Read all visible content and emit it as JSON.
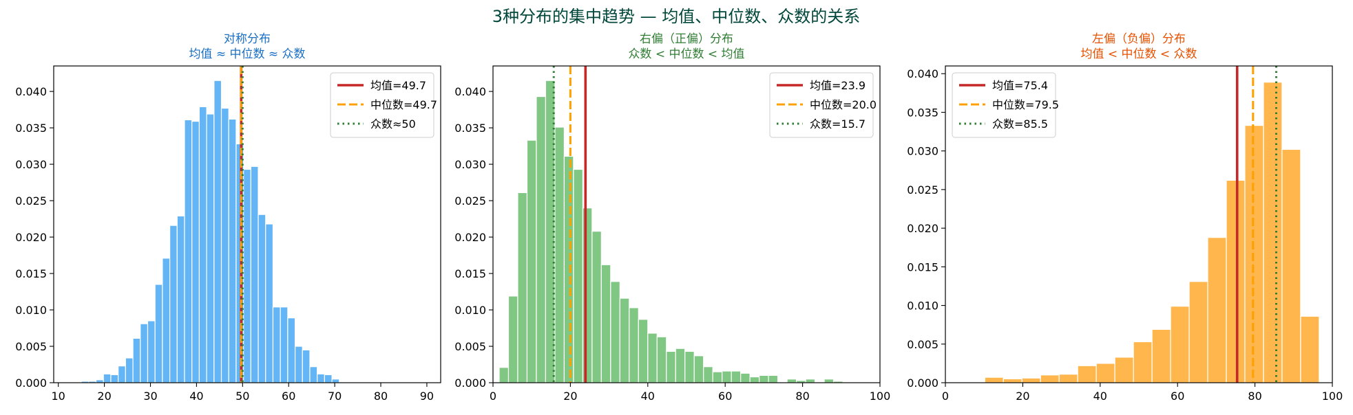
{
  "figure": {
    "suptitle": "3种分布的集中趋势 — 均值、中位数、众数的关系",
    "suptitle_color": "#00473a"
  },
  "chart_data": [
    {
      "type": "bar",
      "title_line1": "对称分布",
      "title_line2": "均值 ≈ 中位数 ≈ 众数",
      "title_color": "#1a6fc4",
      "bar_color": "#64b5f6",
      "xlim": [
        9,
        93
      ],
      "ylim": [
        0,
        0.0435
      ],
      "xticks": [
        10,
        20,
        30,
        40,
        50,
        60,
        70,
        80,
        90
      ],
      "yticks": [
        0,
        0.005,
        0.01,
        0.015,
        0.02,
        0.025,
        0.03,
        0.035,
        0.04
      ],
      "bin_start": 10.2,
      "bin_width": 1.6,
      "values": [
        0.0001,
        0.0001,
        0.0001,
        0.0002,
        0.0002,
        0.0004,
        0.0012,
        0.0011,
        0.0023,
        0.0034,
        0.0061,
        0.0081,
        0.0085,
        0.0135,
        0.0171,
        0.0216,
        0.0229,
        0.0361,
        0.0359,
        0.0379,
        0.0369,
        0.0415,
        0.0377,
        0.0362,
        0.0328,
        0.0293,
        0.0297,
        0.0231,
        0.0218,
        0.0104,
        0.0104,
        0.0089,
        0.005,
        0.0045,
        0.0022,
        0.0012,
        0.0011,
        0.0005,
        0.0001,
        0.0001,
        0.0001
      ],
      "lines": [
        {
          "label": "均值=49.7",
          "x": 49.7,
          "style": "solid",
          "color": "#c62828"
        },
        {
          "label": "中位数=49.7",
          "x": 49.7,
          "style": "dashed",
          "color": "#ffa000"
        },
        {
          "label": "众数≈50",
          "x": 50.0,
          "style": "dotted",
          "color": "#2e7d32"
        }
      ],
      "legend_loc": "upper right"
    },
    {
      "type": "bar",
      "title_line1": "右偏（正偏）分布",
      "title_line2": "众数 < 中位数 < 均值",
      "title_color": "#2e7d32",
      "bar_color": "#81c784",
      "xlim": [
        0,
        100
      ],
      "ylim": [
        0,
        0.0435
      ],
      "xticks": [
        0,
        20,
        40,
        60,
        80,
        100
      ],
      "yticks": [
        0,
        0.005,
        0.01,
        0.015,
        0.02,
        0.025,
        0.03,
        0.035,
        0.04
      ],
      "bin_start": 1.6,
      "bin_width": 2.4,
      "values": [
        0.0021,
        0.0119,
        0.0261,
        0.0333,
        0.0393,
        0.0415,
        0.0351,
        0.0311,
        0.0293,
        0.024,
        0.0208,
        0.0162,
        0.0139,
        0.0116,
        0.0103,
        0.0087,
        0.0068,
        0.0063,
        0.0043,
        0.0047,
        0.0043,
        0.0037,
        0.0022,
        0.0015,
        0.0016,
        0.0016,
        0.0013,
        0.0008,
        0.001,
        0.001,
        0.0001,
        0.0005,
        0.0003,
        0.0005,
        0.0001,
        0.0005,
        0.0002,
        0.0001
      ],
      "lines": [
        {
          "label": "均值=23.9",
          "x": 23.9,
          "style": "solid",
          "color": "#c62828"
        },
        {
          "label": "中位数=20.0",
          "x": 20.0,
          "style": "dashed",
          "color": "#ffa000"
        },
        {
          "label": "众数=15.7",
          "x": 15.7,
          "style": "dotted",
          "color": "#2e7d32"
        }
      ],
      "legend_loc": "upper right"
    },
    {
      "type": "bar",
      "title_line1": "左偏（负偏）分布",
      "title_line2": "均值 < 中位数 < 众数",
      "title_color": "#e65100",
      "bar_color": "#ffb74d",
      "xlim": [
        0,
        100
      ],
      "ylim": [
        0,
        0.041
      ],
      "xticks": [
        0,
        20,
        40,
        60,
        80,
        100
      ],
      "yticks": [
        0,
        0.005,
        0.01,
        0.015,
        0.02,
        0.025,
        0.03,
        0.035,
        0.04
      ],
      "bin_start": 0.6,
      "bin_width": 4.8,
      "values": [
        0.0001,
        0.0001,
        0.0007,
        0.0005,
        0.0006,
        0.001,
        0.0011,
        0.0022,
        0.0025,
        0.0033,
        0.0053,
        0.0069,
        0.0099,
        0.0131,
        0.0188,
        0.0262,
        0.0333,
        0.0389,
        0.0302,
        0.0086
      ],
      "lines": [
        {
          "label": "均值=75.4",
          "x": 75.4,
          "style": "solid",
          "color": "#c62828"
        },
        {
          "label": "中位数=79.5",
          "x": 79.5,
          "style": "dashed",
          "color": "#ffa000"
        },
        {
          "label": "众数=85.5",
          "x": 85.5,
          "style": "dotted",
          "color": "#2e7d32"
        }
      ],
      "legend_loc": "upper left"
    }
  ]
}
